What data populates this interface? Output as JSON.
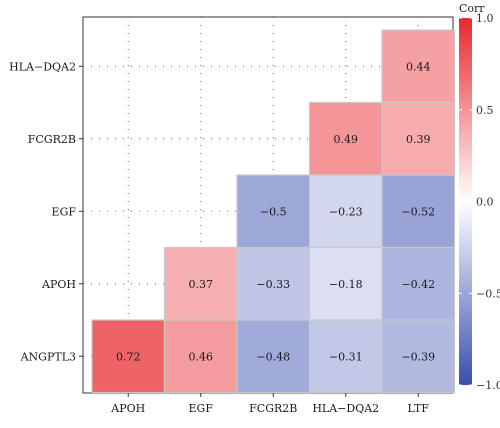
{
  "chart_data": {
    "type": "heatmap",
    "x_labels": [
      "APOH",
      "EGF",
      "FCGR2B",
      "HLA−DQA2",
      "LTF"
    ],
    "y_labels": [
      "HLA−DQA2",
      "FCGR2B",
      "EGF",
      "APOH",
      "ANGPTL3"
    ],
    "cells": [
      {
        "row": 0,
        "col": 4,
        "value": 0.44,
        "label": "0.44"
      },
      {
        "row": 1,
        "col": 3,
        "value": 0.49,
        "label": "0.49"
      },
      {
        "row": 1,
        "col": 4,
        "value": 0.39,
        "label": "0.39"
      },
      {
        "row": 2,
        "col": 2,
        "value": -0.5,
        "label": "−0.5"
      },
      {
        "row": 2,
        "col": 3,
        "value": -0.23,
        "label": "−0.23"
      },
      {
        "row": 2,
        "col": 4,
        "value": -0.52,
        "label": "−0.52"
      },
      {
        "row": 3,
        "col": 1,
        "value": 0.37,
        "label": "0.37"
      },
      {
        "row": 3,
        "col": 2,
        "value": -0.33,
        "label": "−0.33"
      },
      {
        "row": 3,
        "col": 3,
        "value": -0.18,
        "label": "−0.18"
      },
      {
        "row": 3,
        "col": 4,
        "value": -0.42,
        "label": "−0.42"
      },
      {
        "row": 4,
        "col": 0,
        "value": 0.72,
        "label": "0.72"
      },
      {
        "row": 4,
        "col": 1,
        "value": 0.46,
        "label": "0.46"
      },
      {
        "row": 4,
        "col": 2,
        "value": -0.48,
        "label": "−0.48"
      },
      {
        "row": 4,
        "col": 3,
        "value": -0.31,
        "label": "−0.31"
      },
      {
        "row": 4,
        "col": 4,
        "value": -0.39,
        "label": "−0.39"
      }
    ],
    "legend": {
      "title": "Corr",
      "range": [
        -1,
        1
      ],
      "ticks": [
        1,
        0.5,
        0,
        -0.5,
        -1
      ],
      "tick_labels": [
        "1.0",
        "0.5",
        "0.0",
        "−0.5",
        "−1.0"
      ],
      "placement": "right"
    },
    "colors": {
      "low": "#3a4fb0",
      "mid": "#ffffff",
      "high": "#e8282b"
    },
    "empty_cells": "dotted-cross",
    "title": "",
    "xlabel": "",
    "ylabel": ""
  }
}
